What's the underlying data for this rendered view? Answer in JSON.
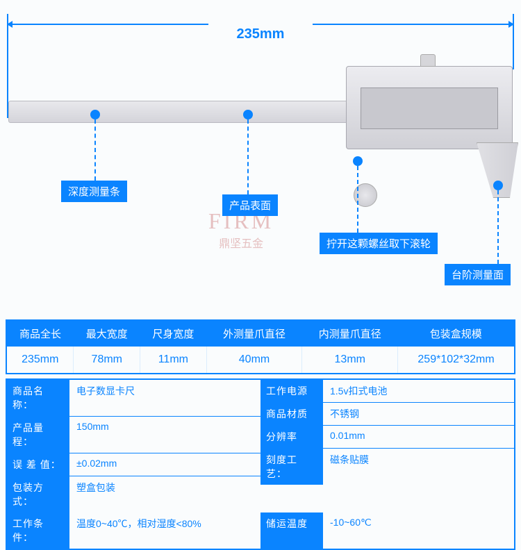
{
  "colors": {
    "accent": "#0a84ff",
    "bg": "#fafcfd"
  },
  "dimension": {
    "label": "235mm"
  },
  "callouts": {
    "depth_bar": "深度测量条",
    "surface": "产品表面",
    "screw_note": "拧开这颗螺丝取下滚轮",
    "step_face": "台阶测量面"
  },
  "watermark": {
    "big": "FIRM",
    "small": "鼎坚五金"
  },
  "dim_table": {
    "headers": [
      "商品全长",
      "最大宽度",
      "尺身宽度",
      "外测量爪直径",
      "内测量爪直径",
      "包装盒规模"
    ],
    "values": [
      "235mm",
      "78mm",
      "11mm",
      "40mm",
      "13mm",
      "259*102*32mm"
    ]
  },
  "specs_left": [
    {
      "k": "商品名称：",
      "v": "电子数显卡尺"
    },
    {
      "k": "产品量程：",
      "v": "150mm"
    },
    {
      "k": "误 差 值：",
      "v": "±0.02mm"
    },
    {
      "k": "包装方式：",
      "v": "塑盒包装"
    }
  ],
  "specs_right": [
    {
      "k": "工作电源",
      "v": "1.5v扣式电池"
    },
    {
      "k": "商品材质",
      "v": "不锈钢"
    },
    {
      "k": "分辨率",
      "v": "0.01mm"
    },
    {
      "k": "刻度工艺：",
      "v": "磁条贴膜"
    }
  ],
  "specs_bottom": [
    {
      "k": "工作条件：",
      "v": "温度0~40℃，相对湿度<80%"
    },
    {
      "k": "储运温度",
      "v": "-10~60℃"
    }
  ]
}
